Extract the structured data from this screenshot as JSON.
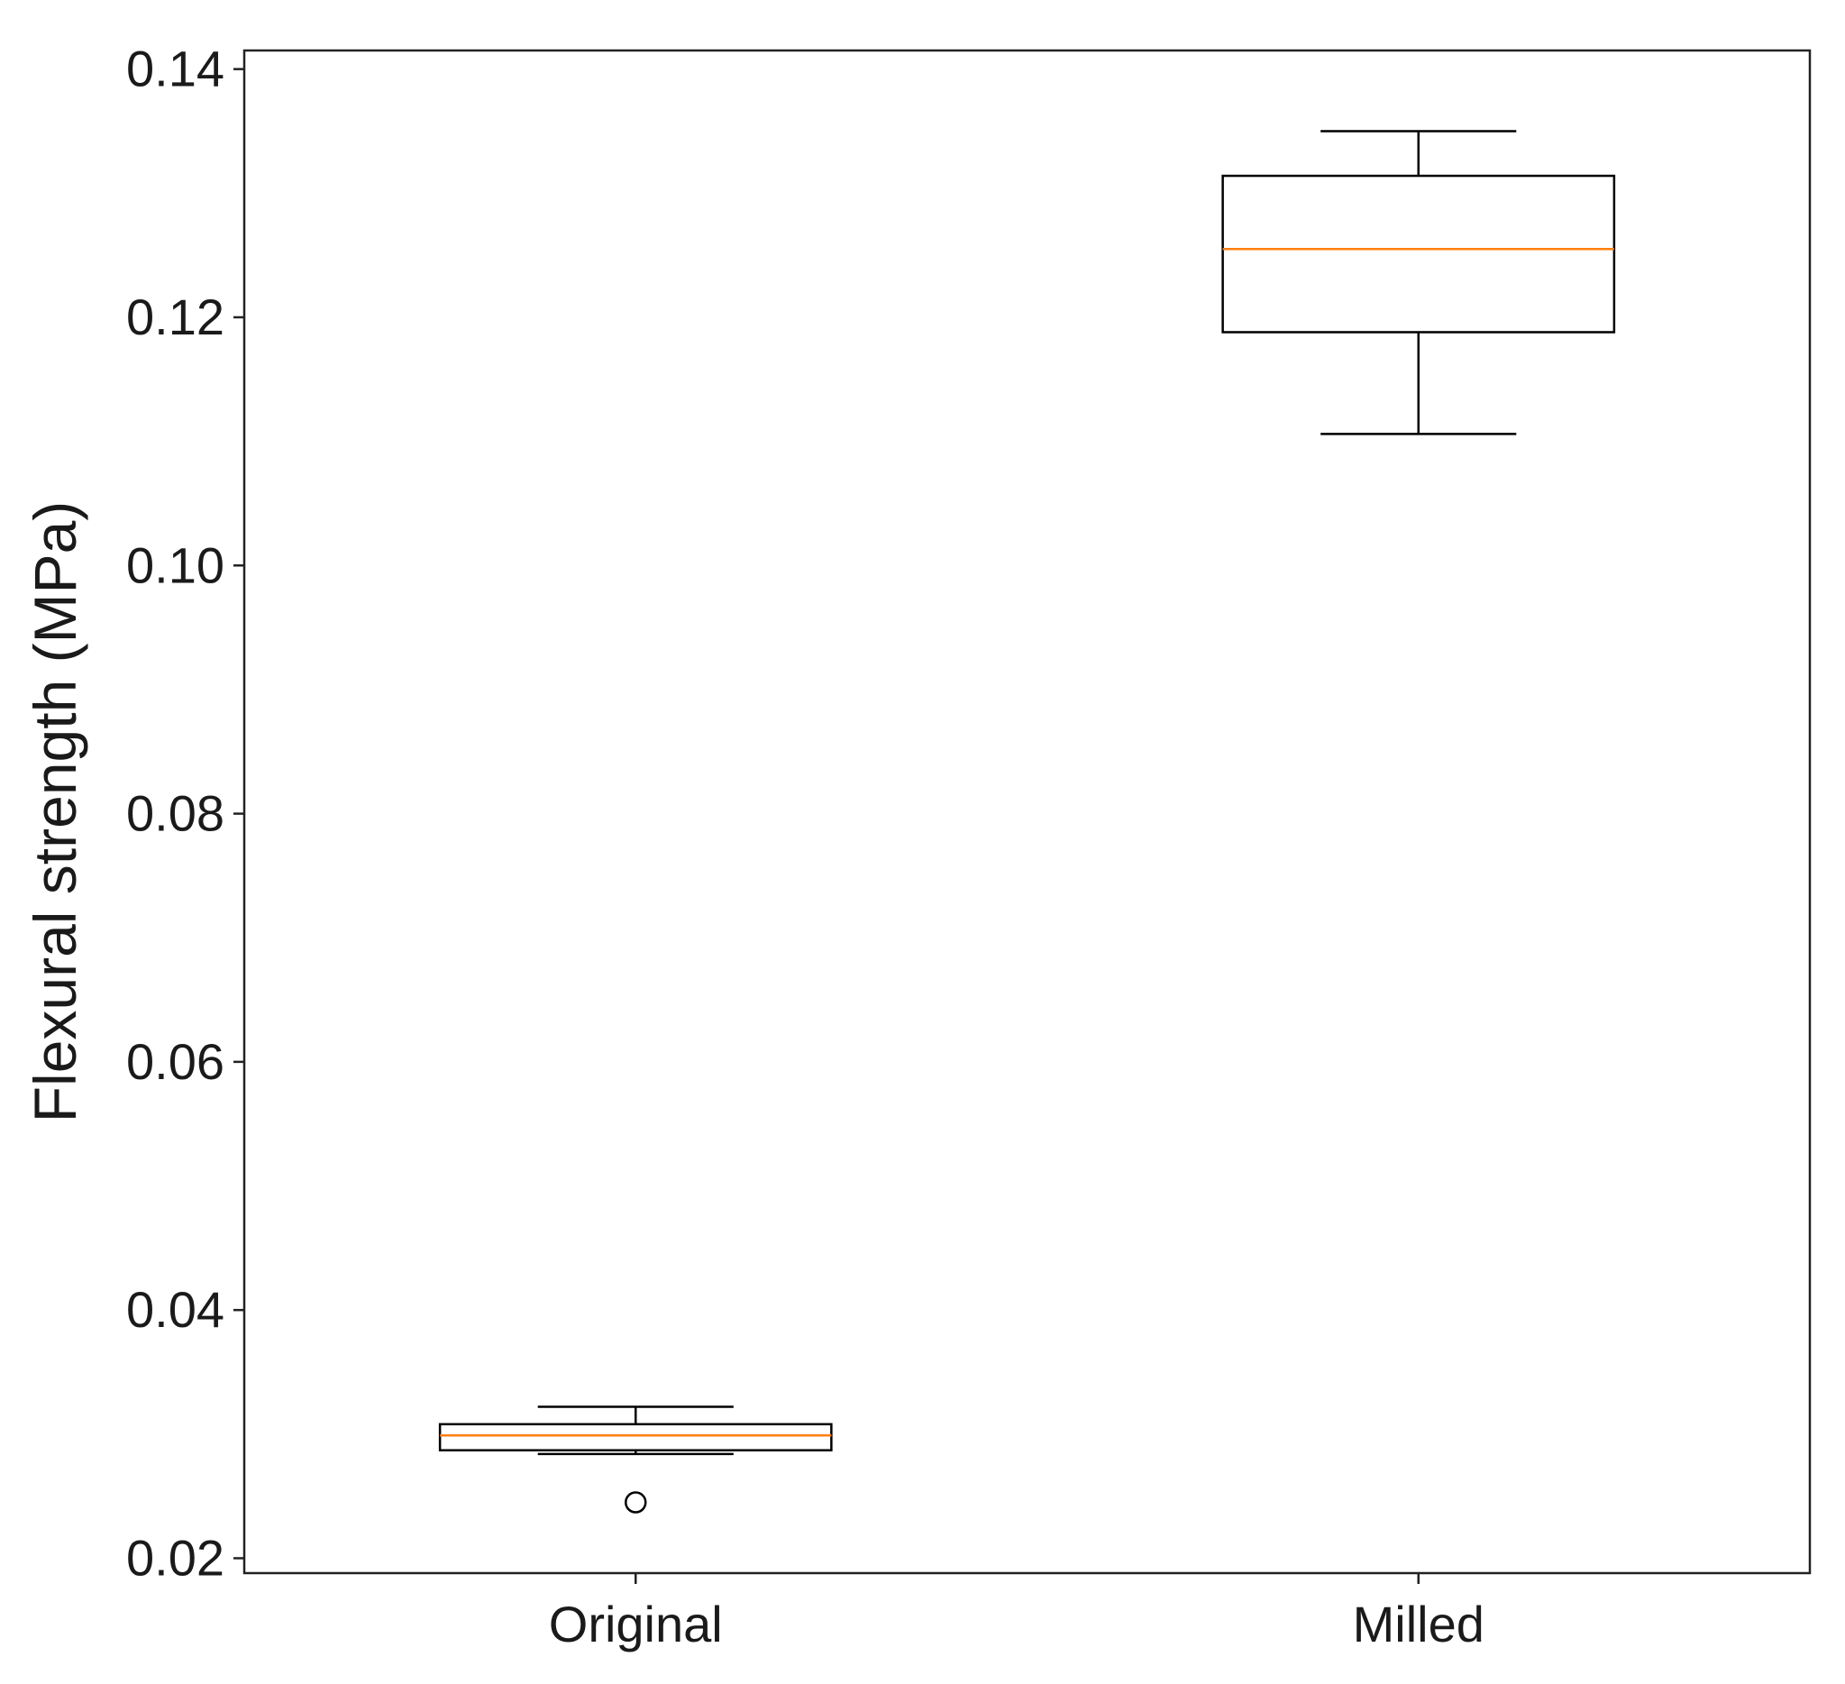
{
  "chart_data": {
    "type": "box",
    "title": "",
    "xlabel": "",
    "ylabel": "Flexural strength (MPa)",
    "ylim": [
      0.0188,
      0.1415
    ],
    "yticks": [
      0.02,
      0.04,
      0.06,
      0.08,
      0.1,
      0.12,
      0.14
    ],
    "ytick_labels": [
      "0.02",
      "0.04",
      "0.06",
      "0.08",
      "0.10",
      "0.12",
      "0.14"
    ],
    "grid": false,
    "categories": [
      "Original",
      "Milled"
    ],
    "boxes": [
      {
        "category": "Original",
        "whisker_low": 0.0284,
        "q1": 0.0287,
        "median": 0.0299,
        "q3": 0.0308,
        "whisker_high": 0.0322,
        "outliers": [
          0.0245
        ]
      },
      {
        "category": "Milled",
        "whisker_low": 0.1106,
        "q1": 0.1188,
        "median": 0.1255,
        "q3": 0.1314,
        "whisker_high": 0.135,
        "outliers": []
      }
    ],
    "colors": {
      "box_edge": "#000000",
      "median_line": "#ff7f0e",
      "axes": "#222222",
      "text": "#1a1a1a"
    }
  }
}
